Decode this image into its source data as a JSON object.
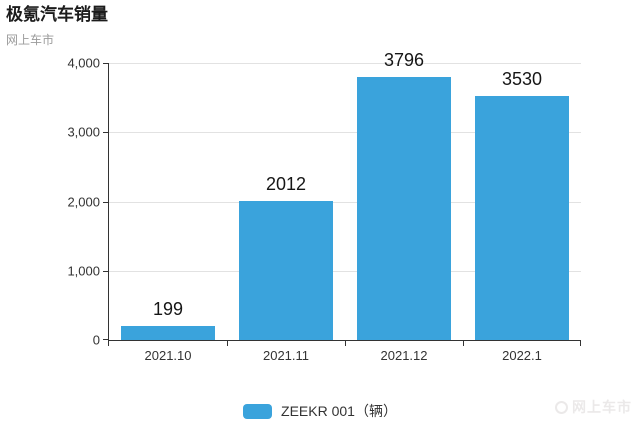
{
  "header": {
    "title": "极氪汽车销量",
    "subtitle": "网上车市"
  },
  "chart_data": {
    "type": "bar",
    "title": "极氪汽车销量",
    "subtitle": "网上车市",
    "categories": [
      "2021.10",
      "2021.11",
      "2021.12",
      "2022.1"
    ],
    "values": [
      199,
      2012,
      3796,
      3530
    ],
    "series": [
      {
        "name": "ZEEKR 001（辆）",
        "values": [
          199,
          2012,
          3796,
          3530
        ]
      }
    ],
    "value_labels": [
      "199",
      "2012",
      "3796",
      "3530"
    ],
    "xlabel": "",
    "ylabel": "",
    "ylim": [
      0,
      4000
    ],
    "ytick_interval": 1000,
    "ytick_labels": [
      "0",
      "1,000",
      "2,000",
      "3,000",
      "4,000"
    ],
    "grid": true,
    "legend_position": "bottom",
    "bar_color": "#3aa3dc",
    "axis_color": "#333333",
    "grid_color": "#e2e2e2",
    "label_color": "#161616"
  },
  "legend": {
    "label": "ZEEKR 001（辆）"
  },
  "watermark": {
    "text": "网上车市"
  }
}
